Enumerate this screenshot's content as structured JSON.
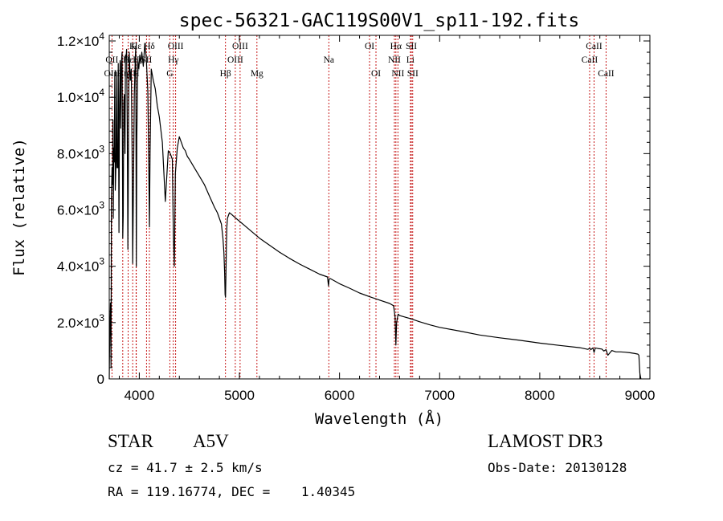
{
  "chart_data": {
    "type": "line",
    "title": "spec-56321-GAC119S00V1_sp11-192.fits",
    "xlabel": "Wavelength (Å)",
    "ylabel": "Flux (relative)",
    "xlim": [
      3700,
      9100
    ],
    "ylim": [
      0,
      12200
    ],
    "x_ticks": [
      {
        "value": 4000,
        "label": "4000"
      },
      {
        "value": 5000,
        "label": "5000"
      },
      {
        "value": 6000,
        "label": "6000"
      },
      {
        "value": 7000,
        "label": "7000"
      },
      {
        "value": 8000,
        "label": "8000"
      },
      {
        "value": 9000,
        "label": "9000"
      }
    ],
    "y_ticks": [
      {
        "value": 0,
        "mantissa": "0",
        "exponent": ""
      },
      {
        "value": 2000,
        "mantissa": "2.0×10",
        "exponent": "3"
      },
      {
        "value": 4000,
        "mantissa": "4.0×10",
        "exponent": "3"
      },
      {
        "value": 6000,
        "mantissa": "6.0×10",
        "exponent": "3"
      },
      {
        "value": 8000,
        "mantissa": "8.0×10",
        "exponent": "3"
      },
      {
        "value": 10000,
        "mantissa": "1.0×10",
        "exponent": "4"
      },
      {
        "value": 12000,
        "mantissa": "1.2×10",
        "exponent": "4"
      }
    ],
    "spectrum": {
      "x": [
        3700,
        3705,
        3712,
        3718,
        3722,
        3728,
        3733,
        3737,
        3740,
        3745,
        3750,
        3755,
        3760,
        3768,
        3772,
        3778,
        3785,
        3790,
        3797,
        3802,
        3808,
        3815,
        3820,
        3828,
        3835,
        3840,
        3845,
        3850,
        3857,
        3862,
        3868,
        3873,
        3880,
        3886,
        3889,
        3893,
        3900,
        3910,
        3920,
        3928,
        3934,
        3940,
        3950,
        3960,
        3965,
        3970,
        3975,
        3985,
        3995,
        4005,
        4015,
        4025,
        4040,
        4055,
        4070,
        4085,
        4095,
        4101,
        4108,
        4120,
        4140,
        4160,
        4180,
        4200,
        4230,
        4260,
        4290,
        4310,
        4330,
        4340,
        4350,
        4360,
        4380,
        4400,
        4420,
        4440,
        4460,
        4480,
        4500,
        4550,
        4600,
        4650,
        4700,
        4750,
        4780,
        4800,
        4820,
        4835,
        4845,
        4852,
        4857,
        4861,
        4865,
        4870,
        4875,
        4880,
        4890,
        4900,
        4920,
        4950,
        5000,
        5050,
        5100,
        5150,
        5200,
        5300,
        5400,
        5500,
        5600,
        5700,
        5800,
        5880,
        5890,
        5896,
        5910,
        6000,
        6100,
        6200,
        6300,
        6400,
        6500,
        6540,
        6555,
        6563,
        6570,
        6585,
        6600,
        6700,
        6800,
        6900,
        7000,
        7200,
        7400,
        7600,
        7800,
        8000,
        8200,
        8400,
        8480,
        8498,
        8510,
        8530,
        8542,
        8555,
        8580,
        8620,
        8640,
        8662,
        8680,
        8720,
        8760,
        8800,
        8850,
        8900,
        8950,
        8980,
        8990,
        9000,
        9010
      ],
      "y": [
        0,
        1500,
        2700,
        400,
        6500,
        7500,
        6900,
        9200,
        5700,
        8200,
        7700,
        10900,
        6700,
        7800,
        10900,
        7500,
        7500,
        11200,
        5200,
        9500,
        11300,
        8900,
        11200,
        11600,
        5000,
        5800,
        9800,
        10100,
        8000,
        11500,
        11400,
        11700,
        9000,
        4600,
        6400,
        9600,
        11600,
        10600,
        11000,
        8200,
        4100,
        6200,
        10100,
        11400,
        11800,
        4000,
        8500,
        11300,
        11000,
        11500,
        11200,
        11600,
        11100,
        11900,
        11400,
        10200,
        7600,
        5400,
        8000,
        11000,
        10600,
        10300,
        9700,
        9300,
        8400,
        6300,
        8100,
        8000,
        7800,
        5100,
        4000,
        7300,
        8200,
        8600,
        8400,
        8200,
        8100,
        7900,
        7800,
        7500,
        7200,
        6900,
        6500,
        6100,
        5900,
        5700,
        5500,
        5000,
        4500,
        3800,
        3000,
        2900,
        3600,
        4700,
        5400,
        5700,
        5800,
        5900,
        5850,
        5750,
        5600,
        5450,
        5300,
        5150,
        5000,
        4750,
        4500,
        4280,
        4080,
        3900,
        3720,
        3620,
        3300,
        3550,
        3560,
        3380,
        3220,
        3050,
        2920,
        2800,
        2680,
        2600,
        2200,
        1200,
        2000,
        2300,
        2250,
        2150,
        2030,
        1920,
        1830,
        1700,
        1560,
        1460,
        1370,
        1270,
        1190,
        1110,
        1050,
        1090,
        1040,
        1100,
        940,
        1100,
        1080,
        1060,
        990,
        1040,
        840,
        1010,
        960,
        960,
        950,
        930,
        900,
        880,
        840,
        200,
        0
      ]
    },
    "lines": [
      {
        "name": "Hε",
        "wave": 3970,
        "row": 0
      },
      {
        "name": "K",
        "wave": 3934,
        "row": 0
      },
      {
        "name": "Hδ",
        "wave": 4101,
        "row": 0
      },
      {
        "name": "OIII",
        "wave": 4363,
        "row": 0
      },
      {
        "name": "OIII",
        "wave": 5007,
        "row": 0
      },
      {
        "name": "OI",
        "wave": 6300,
        "row": 0
      },
      {
        "name": "Hα",
        "wave": 6563,
        "row": 0
      },
      {
        "name": "SII",
        "wave": 6717,
        "row": 0
      },
      {
        "name": "CaII",
        "wave": 8542,
        "row": 0
      },
      {
        "name": "OII",
        "wave": 3727,
        "row": 1
      },
      {
        "name": "Hε",
        "wave": 3889,
        "row": 1
      },
      {
        "name": "H",
        "wave": 3968,
        "row": 1
      },
      {
        "name": "SII",
        "wave": 4072,
        "row": 1
      },
      {
        "name": "Hγ",
        "wave": 4340,
        "row": 1
      },
      {
        "name": "OIII",
        "wave": 4959,
        "row": 1
      },
      {
        "name": "Na",
        "wave": 5893,
        "row": 1
      },
      {
        "name": "NII",
        "wave": 6548,
        "row": 1
      },
      {
        "name": "Li",
        "wave": 6708,
        "row": 1
      },
      {
        "name": "CaII",
        "wave": 8498,
        "row": 1
      },
      {
        "name": "OIII",
        "wave": 3727,
        "row": 2
      },
      {
        "name": "Hη",
        "wave": 3835,
        "row": 2
      },
      {
        "name": "H",
        "wave": 3968,
        "row": 2
      },
      {
        "name": "G",
        "wave": 4305,
        "row": 2
      },
      {
        "name": "Hβ",
        "wave": 4861,
        "row": 2
      },
      {
        "name": "Mg",
        "wave": 5175,
        "row": 2
      },
      {
        "name": "OI",
        "wave": 6364,
        "row": 2
      },
      {
        "name": "NII",
        "wave": 6583,
        "row": 2
      },
      {
        "name": "SII",
        "wave": 6731,
        "row": 2
      },
      {
        "name": "CaII",
        "wave": 8662,
        "row": 2
      }
    ]
  },
  "info": {
    "object_class": "STAR",
    "subclass": "A5V",
    "survey": "LAMOST DR3",
    "redshift": "cz = 41.7 ± 2.5 km/s",
    "obs_date": "Obs-Date: 20130128",
    "coords": "RA = 119.16774, DEC =    1.40345"
  }
}
